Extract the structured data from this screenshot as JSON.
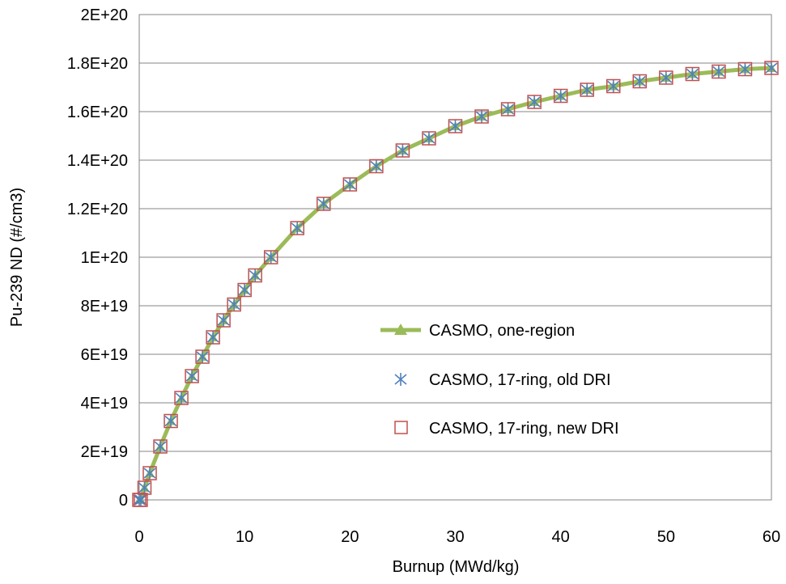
{
  "chart_data": {
    "type": "line",
    "title": "",
    "xlabel": "Burnup (MWd/kg)",
    "ylabel": "Pu-239 ND (#/cm3)",
    "xlim": [
      0,
      60
    ],
    "ylim": [
      0,
      2e+20
    ],
    "xticks": [
      0,
      10,
      20,
      30,
      40,
      50,
      60
    ],
    "xtick_labels": [
      "0",
      "10",
      "20",
      "30",
      "40",
      "50",
      "60"
    ],
    "yticks": [
      0,
      2e+19,
      4e+19,
      6e+19,
      8e+19,
      1e+20,
      1.2e+20,
      1.4e+20,
      1.6e+20,
      1.8e+20,
      2e+20
    ],
    "ytick_labels": [
      "0",
      "2E+19",
      "4E+19",
      "6E+19",
      "8E+19",
      "1E+20",
      "1.2E+20",
      "1.4E+20",
      "1.6E+20",
      "1.8E+20",
      "2E+20"
    ],
    "grid": "horizontal",
    "legend_position": "center-right",
    "x": [
      0,
      0.15,
      0.5,
      1,
      2,
      3,
      4,
      5,
      6,
      7,
      8,
      9,
      10,
      11,
      12.5,
      15,
      17.5,
      20,
      22.5,
      25,
      27.5,
      30,
      32.5,
      35,
      37.5,
      40,
      42.5,
      45,
      47.5,
      50,
      52.5,
      55,
      57.5,
      60
    ],
    "series": [
      {
        "name": "CASMO, one-region",
        "style": "line-with-triangle",
        "color": "#9BBB59",
        "values": [
          0,
          0,
          5e+18,
          1.1e+19,
          2.2e+19,
          3.25e+19,
          4.2e+19,
          5.1e+19,
          5.9e+19,
          6.7e+19,
          7.4e+19,
          8.05e+19,
          8.65e+19,
          9.25e+19,
          1e+20,
          1.12e+20,
          1.22e+20,
          1.3e+20,
          1.375e+20,
          1.44e+20,
          1.49e+20,
          1.54e+20,
          1.58e+20,
          1.61e+20,
          1.64e+20,
          1.665e+20,
          1.69e+20,
          1.705e+20,
          1.725e+20,
          1.74e+20,
          1.755e+20,
          1.765e+20,
          1.775e+20,
          1.78e+20
        ]
      },
      {
        "name": "CASMO, 17-ring, old DRI",
        "style": "asterisk-marker",
        "color": "#4F81BD",
        "values": [
          0,
          0,
          5e+18,
          1.1e+19,
          2.2e+19,
          3.25e+19,
          4.2e+19,
          5.1e+19,
          5.9e+19,
          6.7e+19,
          7.4e+19,
          8.05e+19,
          8.65e+19,
          9.25e+19,
          1e+20,
          1.12e+20,
          1.22e+20,
          1.3e+20,
          1.375e+20,
          1.44e+20,
          1.49e+20,
          1.54e+20,
          1.58e+20,
          1.61e+20,
          1.64e+20,
          1.665e+20,
          1.69e+20,
          1.705e+20,
          1.725e+20,
          1.74e+20,
          1.755e+20,
          1.765e+20,
          1.775e+20,
          1.78e+20
        ]
      },
      {
        "name": "CASMO, 17-ring, new DRI",
        "style": "square-marker",
        "color": "#C0504D",
        "values": [
          0,
          0,
          5e+18,
          1.1e+19,
          2.2e+19,
          3.25e+19,
          4.2e+19,
          5.1e+19,
          5.9e+19,
          6.7e+19,
          7.4e+19,
          8.05e+19,
          8.65e+19,
          9.25e+19,
          1e+20,
          1.12e+20,
          1.22e+20,
          1.3e+20,
          1.375e+20,
          1.44e+20,
          1.49e+20,
          1.54e+20,
          1.58e+20,
          1.61e+20,
          1.64e+20,
          1.665e+20,
          1.69e+20,
          1.705e+20,
          1.725e+20,
          1.74e+20,
          1.755e+20,
          1.765e+20,
          1.775e+20,
          1.78e+20
        ]
      }
    ]
  }
}
